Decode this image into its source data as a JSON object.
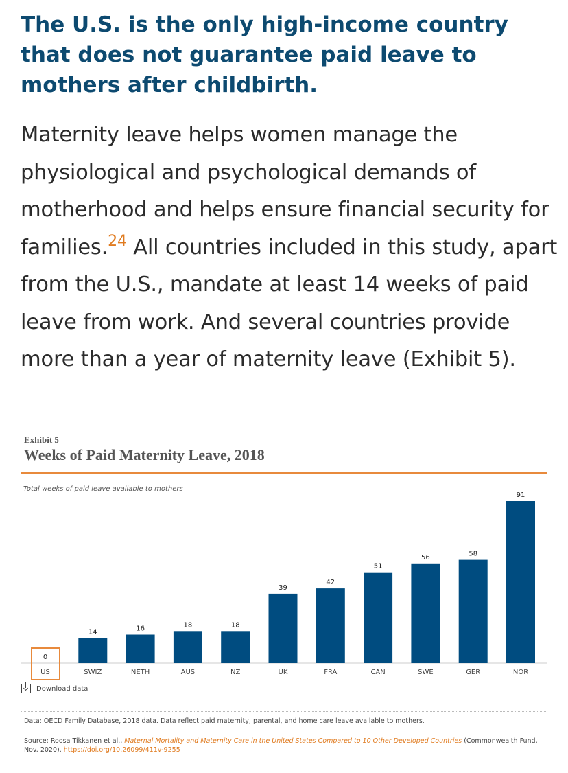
{
  "headline": "The U.S. is the only high-income country that does not guarantee paid leave to mothers after childbirth.",
  "body": {
    "part1": "Maternity leave helps women manage the physiological and psychological demands of motherhood and helps ensure financial security for families.",
    "footnote": "24",
    "part2": " All countries included in this study, apart from the U.S., mandate at least 14 weeks of paid leave from work. And several countries provide more than a year of maternity leave (Exhibit 5)."
  },
  "exhibit": {
    "label": "Exhibit 5",
    "download_label": "Download data",
    "data_note": "Data: OECD Family Database, 2018 data. Data reflect paid maternity, parental, and home care leave available to mothers.",
    "source_prefix": "Source: Roosa Tikkanen et al., ",
    "source_title": "Maternal Mortality and Maternity Care in the United States Compared to 10 Other Developed Countries",
    "source_suffix": " (Commonwealth Fund, Nov. 2020). ",
    "source_link": "https://doi.org/10.26099/411v-9255"
  },
  "colors": {
    "bar": "#004c80",
    "accent": "#e88a3c",
    "headline": "#0d4a70"
  },
  "chart_data": {
    "type": "bar",
    "title": "Weeks of Paid Maternity Leave, 2018",
    "subtitle": "Total weeks of paid leave available to mothers",
    "categories": [
      "US",
      "SWIZ",
      "NETH",
      "AUS",
      "NZ",
      "UK",
      "FRA",
      "CAN",
      "SWE",
      "GER",
      "NOR"
    ],
    "values": [
      0,
      14,
      16,
      18,
      18,
      39,
      42,
      51,
      56,
      58,
      91
    ],
    "highlight": "US",
    "ylim": [
      0,
      91
    ],
    "grid": false,
    "legend": "none"
  }
}
